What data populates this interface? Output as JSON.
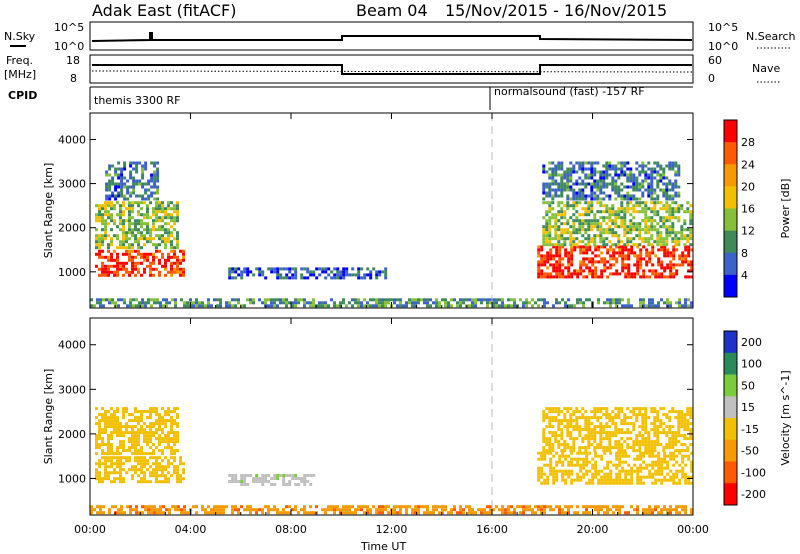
{
  "header": {
    "radar": "Adak East (fitACF)",
    "beam": "Beam 04",
    "dates": "15/Nov/2015 - 16/Nov/2015"
  },
  "strip_labels": {
    "nsky": "N.Sky",
    "nsky_ticks": [
      "10^5",
      "10^0"
    ],
    "nsearch": "N.Search",
    "nsearch_ticks": [
      "10^5",
      "10^0"
    ],
    "freq": "Freq.",
    "freq_unit": "[MHz]",
    "freq_ticks": [
      "18",
      "8"
    ],
    "nave": "Nave",
    "nave_ticks": [
      "60",
      "0"
    ],
    "cpid": "CPID",
    "cpid_1": "themis 3300 RF",
    "cpid_2": "normalsound (fast) -157 RF"
  },
  "chart_data": [
    {
      "type": "heatmap",
      "name": "Power",
      "ylabel": "Slant Range [km]",
      "xlabel": "",
      "x_ticks": [
        "00:00",
        "04:00",
        "08:00",
        "12:00",
        "16:00",
        "20:00",
        "00:00"
      ],
      "x_range_hours": [
        0,
        24
      ],
      "ylim": [
        180,
        4600
      ],
      "y_ticks": [
        1000,
        2000,
        3000,
        4000
      ],
      "colorbar": {
        "label": "Power [dB]",
        "range": [
          0,
          32
        ],
        "ticks": [
          4,
          8,
          12,
          16,
          20,
          24,
          28
        ],
        "colors": [
          "#0000ff",
          "#3e63c8",
          "#3e8a5a",
          "#86c03a",
          "#f2c000",
          "#f59a00",
          "#ff5a00",
          "#ff0000"
        ]
      },
      "marker_hour": 16,
      "echo_regions": [
        {
          "hours": [
            0.2,
            3.8
          ],
          "range_km": [
            900,
            1500
          ],
          "value": 28
        },
        {
          "hours": [
            0.2,
            3.5
          ],
          "range_km": [
            1500,
            2600
          ],
          "value": 14
        },
        {
          "hours": [
            0.6,
            2.8
          ],
          "range_km": [
            2600,
            3500
          ],
          "value": 8
        },
        {
          "hours": [
            5.5,
            12.0
          ],
          "range_km": [
            800,
            1100
          ],
          "value": 6
        },
        {
          "hours": [
            17.8,
            24.0
          ],
          "range_km": [
            850,
            1600
          ],
          "value": 28
        },
        {
          "hours": [
            18.0,
            24.0
          ],
          "range_km": [
            1600,
            2600
          ],
          "value": 14
        },
        {
          "hours": [
            18.0,
            23.5
          ],
          "range_km": [
            2600,
            3500
          ],
          "value": 8
        },
        {
          "hours": [
            0.0,
            24.0
          ],
          "range_km": [
            200,
            400
          ],
          "value": 10
        }
      ]
    },
    {
      "type": "heatmap",
      "name": "Velocity",
      "ylabel": "Slant Range [km]",
      "xlabel": "Time UT",
      "x_ticks": [
        "00:00",
        "04:00",
        "08:00",
        "12:00",
        "16:00",
        "20:00",
        "00:00"
      ],
      "x_range_hours": [
        0,
        24
      ],
      "ylim": [
        180,
        4600
      ],
      "y_ticks": [
        1000,
        2000,
        3000,
        4000
      ],
      "colorbar": {
        "label": "Velocity [m s^-1]",
        "levels": [
          -200,
          -100,
          -50,
          -15,
          15,
          50,
          100,
          200
        ],
        "ticks": [
          200,
          100,
          50,
          15,
          -15,
          -50,
          -100,
          -200
        ],
        "colors": [
          "#1c32c8",
          "#2a8a5a",
          "#7acc3a",
          "#c0c0c0",
          "#f2c000",
          "#f59a00",
          "#ff5a00",
          "#ff0000"
        ]
      },
      "marker_hour": 16,
      "echo_regions": [
        {
          "hours": [
            0.2,
            3.8
          ],
          "range_km": [
            900,
            1500
          ],
          "value": 0
        },
        {
          "hours": [
            0.2,
            3.5
          ],
          "range_km": [
            1500,
            2600
          ],
          "value": 0
        },
        {
          "hours": [
            5.5,
            9.0
          ],
          "range_km": [
            850,
            1100
          ],
          "value": 40
        },
        {
          "hours": [
            17.8,
            24.0
          ],
          "range_km": [
            850,
            1600
          ],
          "value": 0
        },
        {
          "hours": [
            18.0,
            24.0
          ],
          "range_km": [
            1600,
            2600
          ],
          "value": 0
        },
        {
          "hours": [
            0.0,
            24.0
          ],
          "range_km": [
            200,
            400
          ],
          "value": -40
        }
      ]
    }
  ]
}
